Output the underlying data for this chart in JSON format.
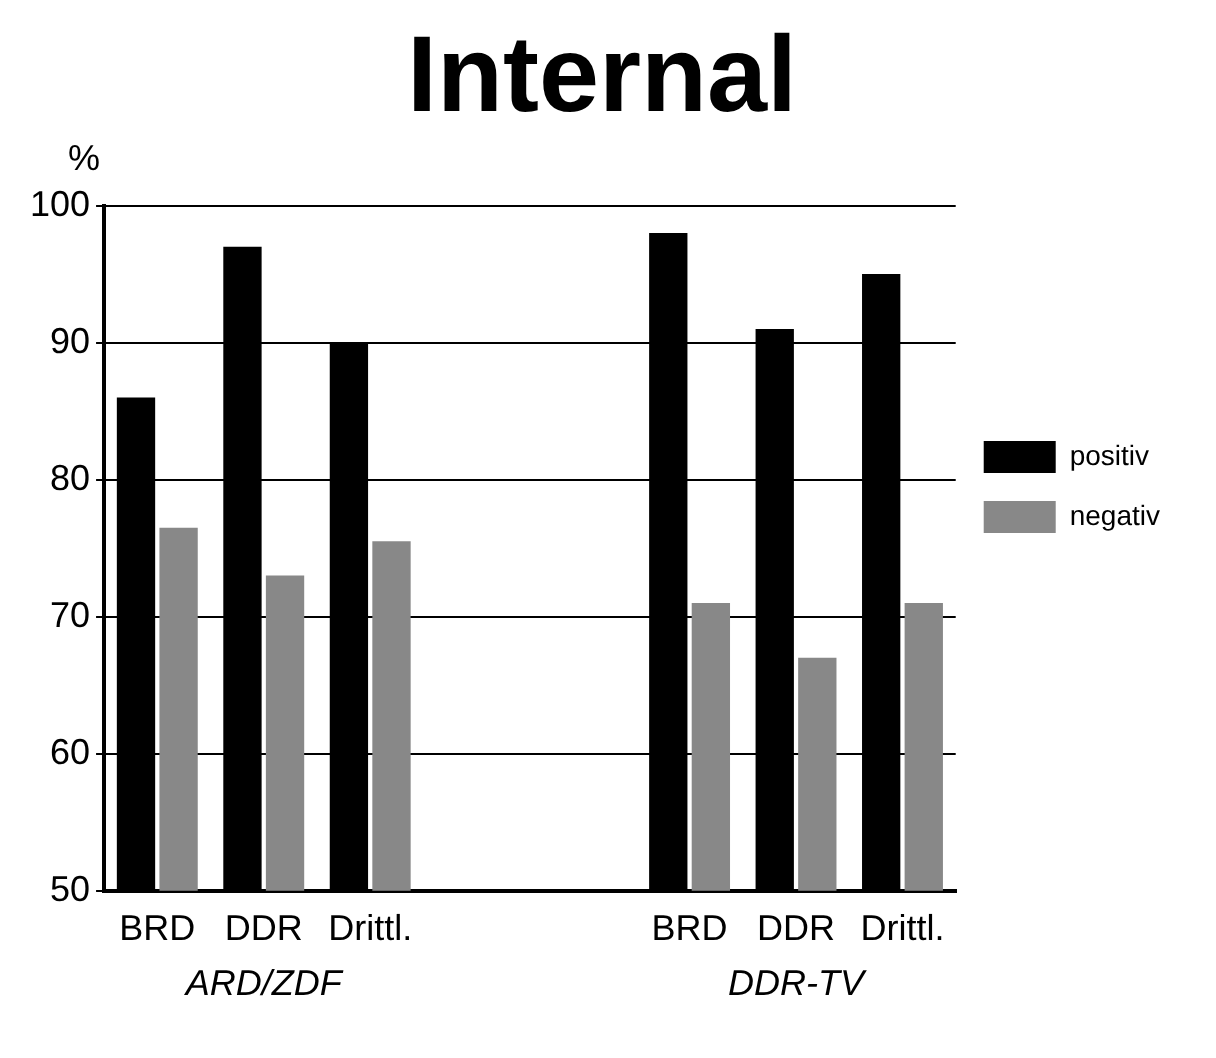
{
  "chart_data": {
    "type": "bar",
    "title": "Internal",
    "ylabel": "%",
    "categories": [
      "BRD",
      "DDR",
      "Drittl.",
      null,
      null,
      "BRD",
      "DDR",
      "Drittl."
    ],
    "series": [
      {
        "name": "positiv",
        "color": "#000000",
        "values": [
          86,
          97,
          90,
          null,
          null,
          98,
          91,
          95
        ]
      },
      {
        "name": "negativ",
        "color": "#888888",
        "values": [
          76.5,
          73,
          75.5,
          null,
          null,
          71,
          67,
          71
        ]
      }
    ],
    "ylim": [
      50,
      100
    ],
    "yticks": [
      50,
      60,
      70,
      80,
      90,
      100
    ],
    "grid": "y",
    "legend": "right",
    "annotations": [
      "ARD/ZDF",
      "DDR-TV"
    ]
  }
}
